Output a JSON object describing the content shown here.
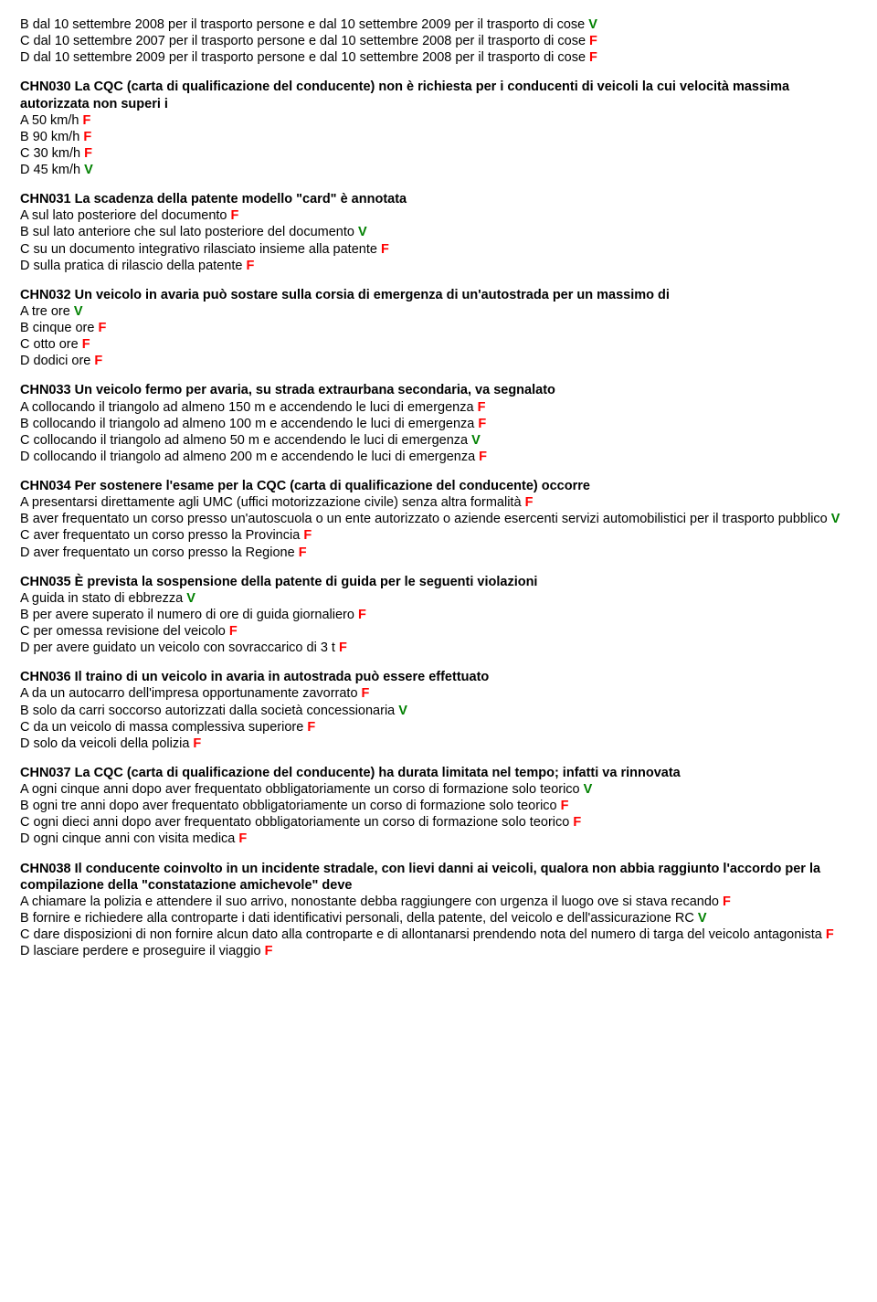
{
  "colors": {
    "true": "#008000",
    "false": "#ff0000",
    "text": "#000000",
    "background": "#ffffff"
  },
  "marks": {
    "V": "V",
    "F": "F"
  },
  "blocks": [
    {
      "title": "",
      "lines": [
        {
          "text": "B dal 10 settembre 2008 per il trasporto persone e dal 10 settembre 2009 per il trasporto di cose ",
          "mark": "V"
        },
        {
          "text": "C dal 10 settembre 2007 per il trasporto persone e dal 10 settembre 2008 per il trasporto di cose ",
          "mark": "F"
        },
        {
          "text": "D dal 10 settembre 2009 per il trasporto persone e dal 10 settembre 2008 per il trasporto di cose ",
          "mark": "F"
        }
      ]
    },
    {
      "title": "CHN030 La CQC (carta di qualificazione del conducente) non è richiesta per i conducenti di veicoli la cui velocità massima autorizzata non superi i",
      "lines": [
        {
          "text": "A 50 km/h  ",
          "mark": "F"
        },
        {
          "text": "B 90 km/h ",
          "mark": "F"
        },
        {
          "text": "C 30 km/h ",
          "mark": "F"
        },
        {
          "text": "D 45 km/h ",
          "mark": "V"
        }
      ]
    },
    {
      "title": "CHN031 La scadenza della patente modello \"card\" è annotata",
      "lines": [
        {
          "text": "A sul lato posteriore del documento ",
          "mark": "F"
        },
        {
          "text": "B sul lato anteriore che sul lato posteriore del documento ",
          "mark": "V"
        },
        {
          "text": "C su un documento integrativo rilasciato insieme alla patente ",
          "mark": "F"
        },
        {
          "text": "D sulla pratica di rilascio della patente ",
          "mark": "F"
        }
      ]
    },
    {
      "title": "CHN032 Un veicolo in avaria può sostare sulla corsia di emergenza di un'autostrada per un massimo di",
      "lines": [
        {
          "text": "A tre ore ",
          "mark": "V"
        },
        {
          "text": "B cinque ore ",
          "mark": "F"
        },
        {
          "text": "C otto ore ",
          "mark": "F"
        },
        {
          "text": "D dodici ore ",
          "mark": "F"
        }
      ]
    },
    {
      "title": "CHN033 Un veicolo fermo per avaria, su strada extraurbana secondaria, va segnalato",
      "lines": [
        {
          "text": "A collocando il triangolo ad almeno 150 m e accendendo le luci di emergenza ",
          "mark": "F"
        },
        {
          "text": "B collocando il triangolo ad almeno 100 m e accendendo le luci di emergenza ",
          "mark": "F"
        },
        {
          "text": "C collocando il triangolo ad almeno 50 m e accendendo le luci di emergenza ",
          "mark": "V"
        },
        {
          "text": "D collocando il triangolo ad almeno 200 m e accendendo le luci di emergenza ",
          "mark": "F"
        }
      ]
    },
    {
      "title": "CHN034 Per sostenere l'esame per la CQC (carta di qualificazione del conducente) occorre",
      "lines": [
        {
          "text": "A presentarsi direttamente agli UMC (uffici motorizzazione civile) senza altra formalità ",
          "mark": "F"
        },
        {
          "text": "B aver frequentato un corso presso un'autoscuola o un ente autorizzato o aziende esercenti servizi automobilistici per il trasporto pubblico ",
          "mark": "V"
        },
        {
          "text": "C aver frequentato un corso presso la Provincia ",
          "mark": "F"
        },
        {
          "text": "D aver frequentato un corso presso la Regione ",
          "mark": "F"
        }
      ]
    },
    {
      "title": "CHN035 È prevista la sospensione della patente di guida per le seguenti violazioni",
      "lines": [
        {
          "text": "A guida in stato di ebbrezza ",
          "mark": "V"
        },
        {
          "text": "B per avere superato il numero di ore di guida giornaliero ",
          "mark": "F"
        },
        {
          "text": "C per omessa revisione del veicolo ",
          "mark": "F"
        },
        {
          "text": "D per avere guidato un veicolo con sovraccarico di 3 t ",
          "mark": "F"
        }
      ]
    },
    {
      "title": "CHN036 Il traino di un veicolo in avaria in autostrada può essere effettuato",
      "lines": [
        {
          "text": "A da un autocarro dell'impresa opportunamente zavorrato ",
          "mark": "F"
        },
        {
          "text": "B solo da carri soccorso autorizzati dalla società concessionaria ",
          "mark": "V"
        },
        {
          "text": "C da un veicolo di massa complessiva superiore ",
          "mark": "F"
        },
        {
          "text": "D solo da veicoli della polizia ",
          "mark": "F"
        }
      ]
    },
    {
      "title": "CHN037 La CQC (carta di qualificazione del conducente) ha durata limitata nel tempo; infatti va rinnovata",
      "lines": [
        {
          "text": "A ogni cinque anni dopo aver frequentato obbligatoriamente un corso di formazione solo teorico ",
          "mark": "V"
        },
        {
          "text": "B ogni tre anni dopo aver frequentato obbligatoriamente un corso di formazione solo teorico ",
          "mark": "F"
        },
        {
          "text": "C ogni dieci anni dopo aver frequentato obbligatoriamente un corso di formazione solo teorico ",
          "mark": "F"
        },
        {
          "text": "D ogni cinque anni con visita medica ",
          "mark": "F"
        }
      ]
    },
    {
      "title": "CHN038 Il conducente coinvolto in un incidente stradale, con lievi danni ai veicoli, qualora non abbia raggiunto l'accordo per la compilazione della \"constatazione amichevole\" deve",
      "lines": [
        {
          "text": "A chiamare la polizia e attendere il suo arrivo, nonostante debba raggiungere con urgenza il luogo ove si stava recando ",
          "mark": "F"
        },
        {
          "text": "B fornire e richiedere alla controparte i dati identificativi personali, della patente, del veicolo e dell'assicurazione RC ",
          "mark": "V"
        },
        {
          "text": "C dare disposizioni di non fornire alcun dato alla controparte e di allontanarsi prendendo nota del numero di targa del veicolo antagonista ",
          "mark": "F"
        },
        {
          "text": "D lasciare perdere e proseguire il viaggio ",
          "mark": "F"
        }
      ]
    }
  ]
}
